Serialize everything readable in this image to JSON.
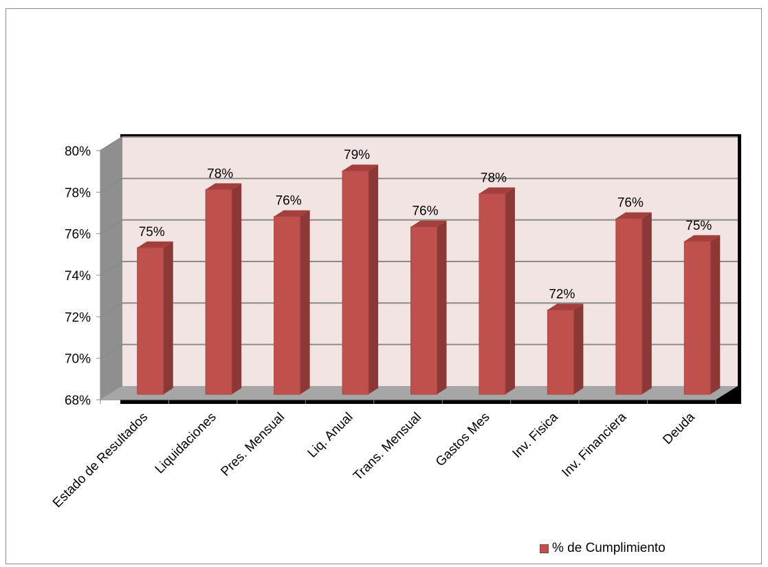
{
  "chart_data": {
    "type": "bar",
    "categories": [
      "Estado de Resultados",
      "Liquidaciones",
      "Pres. Mensual",
      "Liq. Anual",
      "Trans. Mensual",
      "Gastos Mes",
      "Inv. Fisica",
      "Inv. Financiera",
      "Deuda"
    ],
    "series": [
      {
        "name": "% de Cumplimiento",
        "values": [
          75.0,
          77.8,
          76.5,
          78.7,
          76.0,
          77.6,
          72.0,
          76.4,
          75.3
        ],
        "labels": [
          "75%",
          "78%",
          "76%",
          "79%",
          "76%",
          "78%",
          "72%",
          "76%",
          "75%"
        ]
      }
    ],
    "yticks": [
      68,
      70,
      72,
      74,
      76,
      78,
      80
    ],
    "ytick_labels": [
      "68%",
      "70%",
      "72%",
      "74%",
      "76%",
      "78%",
      "80%"
    ],
    "ylim": [
      68,
      80
    ],
    "grid": true,
    "legend_position": "bottom-right",
    "colors": {
      "bar_front": "#c0504d",
      "bar_side": "#8c3836",
      "bar_top": "#a33f3c",
      "back_wall": "#f3e4e4",
      "side_wall": "#8f8f8f",
      "floor": "#a6a6a6",
      "plot_border": "#000000"
    }
  }
}
